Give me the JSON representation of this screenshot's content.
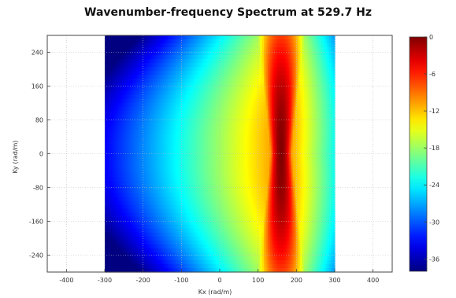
{
  "chart_data": {
    "type": "heatmap",
    "title": "Wavenumber-frequency Spectrum at 529.7 Hz",
    "xlabel": "Kx (rad/m)",
    "ylabel": "Ky (rad/m)",
    "xlim": [
      -450,
      450
    ],
    "ylim": [
      -280,
      280
    ],
    "x_ticks": [
      "-400",
      "-300",
      "-200",
      "-100",
      "0",
      "100",
      "200",
      "300",
      "400"
    ],
    "y_ticks": [
      "240",
      "160",
      "80",
      "0",
      "-80",
      "-160",
      "-240"
    ],
    "data_extent": {
      "x": [
        -300,
        300
      ],
      "y": [
        -280,
        280
      ]
    },
    "peak": {
      "kx": 160,
      "ky": 0,
      "level_db": 0
    },
    "colorscale": "jet",
    "colorbar": {
      "range": [
        -38,
        0
      ],
      "ticks": [
        "0",
        "-6",
        "-12",
        "-18",
        "-24",
        "-30",
        "-36"
      ]
    },
    "grid": true
  }
}
